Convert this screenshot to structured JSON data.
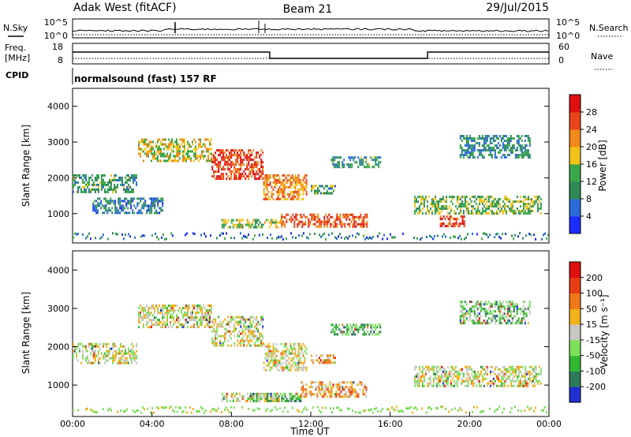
{
  "header": {
    "station": "Adak West (fitACF)",
    "beam": "Beam 21",
    "date": "29/Jul/2015"
  },
  "top_panels": {
    "nsky_label": "N.Sky",
    "nsky_ticks": [
      "10^5",
      "10^0"
    ],
    "nsearch_label": "N.Search",
    "nsearch_ticks": [
      "10^5",
      "10^0"
    ],
    "freq_label": [
      "Freq.",
      "[MHz]"
    ],
    "freq_ticks": [
      "18",
      "8"
    ],
    "nave_label": "Nave",
    "nave_ticks": [
      "60",
      "0"
    ],
    "cpid_label": "CPID",
    "cpid_text": "normalsound (fast) 157 RF"
  },
  "chart_data": [
    {
      "type": "heatmap",
      "name": "power",
      "ylabel": "Slant Range [km]",
      "ylim": [
        180,
        4500
      ],
      "yticks": [
        "1000",
        "2000",
        "3000",
        "4000"
      ],
      "xlim_hours": [
        0,
        24
      ],
      "colorbar_label": "Power [dB]",
      "colorbar_ticks": [
        "4",
        "8",
        "12",
        "16",
        "20",
        "24",
        "28"
      ],
      "colorbar_colors": [
        "#1c2cff",
        "#2a6bd8",
        "#2e8b57",
        "#3aa84a",
        "#f2c21a",
        "#f08a1a",
        "#e8451a",
        "#e01010"
      ],
      "regions": [
        {
          "t": [
            0.0,
            3.2
          ],
          "r": [
            1600,
            2100
          ],
          "level": 0.35
        },
        {
          "t": [
            1.0,
            4.5
          ],
          "r": [
            1050,
            1450
          ],
          "level": 0.25
        },
        {
          "t": [
            3.3,
            7.0
          ],
          "r": [
            2500,
            3100
          ],
          "level": 0.55
        },
        {
          "t": [
            7.0,
            9.6
          ],
          "r": [
            2000,
            2800
          ],
          "level": 0.85
        },
        {
          "t": [
            9.6,
            11.8
          ],
          "r": [
            1400,
            2100
          ],
          "level": 0.7
        },
        {
          "t": [
            7.5,
            10.5
          ],
          "r": [
            600,
            850
          ],
          "level": 0.5
        },
        {
          "t": [
            10.5,
            14.8
          ],
          "r": [
            650,
            1000
          ],
          "level": 0.8
        },
        {
          "t": [
            12.0,
            13.2
          ],
          "r": [
            1600,
            1800
          ],
          "level": 0.4
        },
        {
          "t": [
            13.0,
            15.5
          ],
          "r": [
            2300,
            2600
          ],
          "level": 0.35
        },
        {
          "t": [
            17.2,
            23.6
          ],
          "r": [
            1000,
            1500
          ],
          "level": 0.45
        },
        {
          "t": [
            18.5,
            19.8
          ],
          "r": [
            650,
            950
          ],
          "level": 0.85
        },
        {
          "t": [
            19.5,
            23.0
          ],
          "r": [
            2600,
            3200
          ],
          "level": 0.3
        }
      ]
    },
    {
      "type": "heatmap",
      "name": "velocity",
      "ylabel": "Slant Range [km]",
      "ylim": [
        180,
        4500
      ],
      "yticks": [
        "1000",
        "2000",
        "3000",
        "4000"
      ],
      "xlim_hours": [
        0,
        24
      ],
      "xticks": [
        "00:00",
        "04:00",
        "08:00",
        "12:00",
        "16:00",
        "20:00",
        "00:00"
      ],
      "xlabel": "Time UT",
      "colorbar_label": "Velocity [m s⁻¹]",
      "colorbar_ticks": [
        "200",
        "100",
        "50",
        "15",
        "-15",
        "-50",
        "-100",
        "-200"
      ],
      "colorbar_colors": [
        "#2030d0",
        "#2d7a5a",
        "#33b833",
        "#7ce05a",
        "#c8c8c0",
        "#f2b21a",
        "#f07818",
        "#e83c14",
        "#e01010"
      ],
      "regions": [
        {
          "t": [
            0.0,
            3.2
          ],
          "r": [
            1600,
            2100
          ],
          "level": 0.5
        },
        {
          "t": [
            3.3,
            7.0
          ],
          "r": [
            2500,
            3100
          ],
          "level": 0.5
        },
        {
          "t": [
            7.0,
            9.6
          ],
          "r": [
            2000,
            2800
          ],
          "level": 0.5
        },
        {
          "t": [
            9.6,
            11.8
          ],
          "r": [
            1400,
            2100
          ],
          "level": 0.5
        },
        {
          "t": [
            7.5,
            10.5
          ],
          "r": [
            600,
            800
          ],
          "level": 0.5
        },
        {
          "t": [
            9.0,
            11.5
          ],
          "r": [
            600,
            800
          ],
          "level": 0.3
        },
        {
          "t": [
            11.5,
            14.8
          ],
          "r": [
            700,
            1100
          ],
          "level": 0.65
        },
        {
          "t": [
            12.0,
            13.2
          ],
          "r": [
            1600,
            1800
          ],
          "level": 0.65
        },
        {
          "t": [
            13.0,
            15.5
          ],
          "r": [
            2300,
            2600
          ],
          "level": 0.3
        },
        {
          "t": [
            17.2,
            23.6
          ],
          "r": [
            1000,
            1500
          ],
          "level": 0.5
        },
        {
          "t": [
            19.5,
            23.0
          ],
          "r": [
            2600,
            3200
          ],
          "level": 0.35
        }
      ]
    }
  ]
}
